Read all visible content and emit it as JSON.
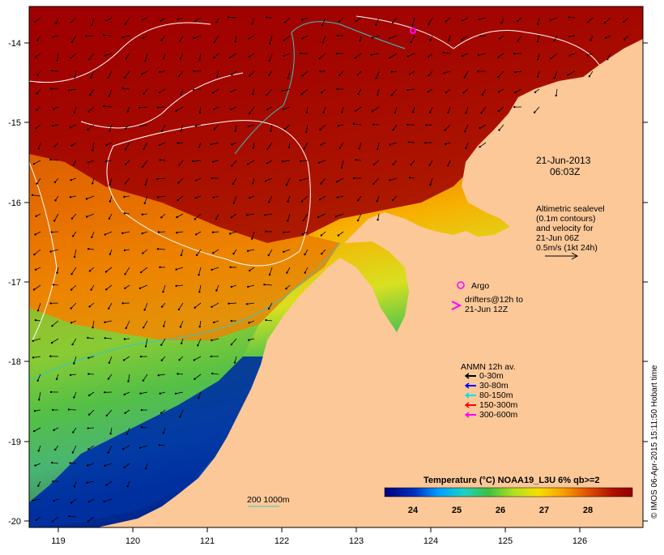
{
  "map": {
    "date": "21-Jun-2013",
    "time": "06:03Z",
    "x_ticks": [
      "119",
      "120",
      "121",
      "122",
      "123",
      "124",
      "125",
      "126"
    ],
    "y_ticks": [
      "-14",
      "-15",
      "-16",
      "-17",
      "-18",
      "-19",
      "-20"
    ],
    "colors": {
      "ocean_hot": "#a00000",
      "ocean_warm": "#e06000",
      "ocean_mid": "#f8c000",
      "ocean_cool": "#40c040",
      "ocean_cold": "#0030a0",
      "land": "#fcc898",
      "contour": "#ffffff",
      "isobath": "#30c8c8"
    }
  },
  "info": {
    "line1": "Altimetric sealevel",
    "line2": "(0.1m contours)",
    "line3": "and velocity for",
    "line4": "21-Jun 06Z",
    "line5": "0.5m/s (1kt 24h)"
  },
  "legend": {
    "argo": "Argo",
    "drifters_line1": "drifters@12h to",
    "drifters_line2": "21-Jun 12Z",
    "anmn_title": "ANMN 12h av.",
    "depths": [
      {
        "label": "0-30m",
        "color": "#000000"
      },
      {
        "label": "30-80m",
        "color": "#0000ff"
      },
      {
        "label": "80-150m",
        "color": "#00e0e0"
      },
      {
        "label": "150-300m",
        "color": "#ff0000"
      },
      {
        "label": "300-600m",
        "color": "#ff00ff"
      }
    ]
  },
  "isobath_label": "200  1000m",
  "colorbar": {
    "title": "Temperature (°C) NOAA19_L3U 6% qb>=2",
    "ticks": [
      "24",
      "25",
      "26",
      "27",
      "28"
    ]
  },
  "credit": "© IMOS 06-Apr-2015 15:11:50 Hobart time"
}
